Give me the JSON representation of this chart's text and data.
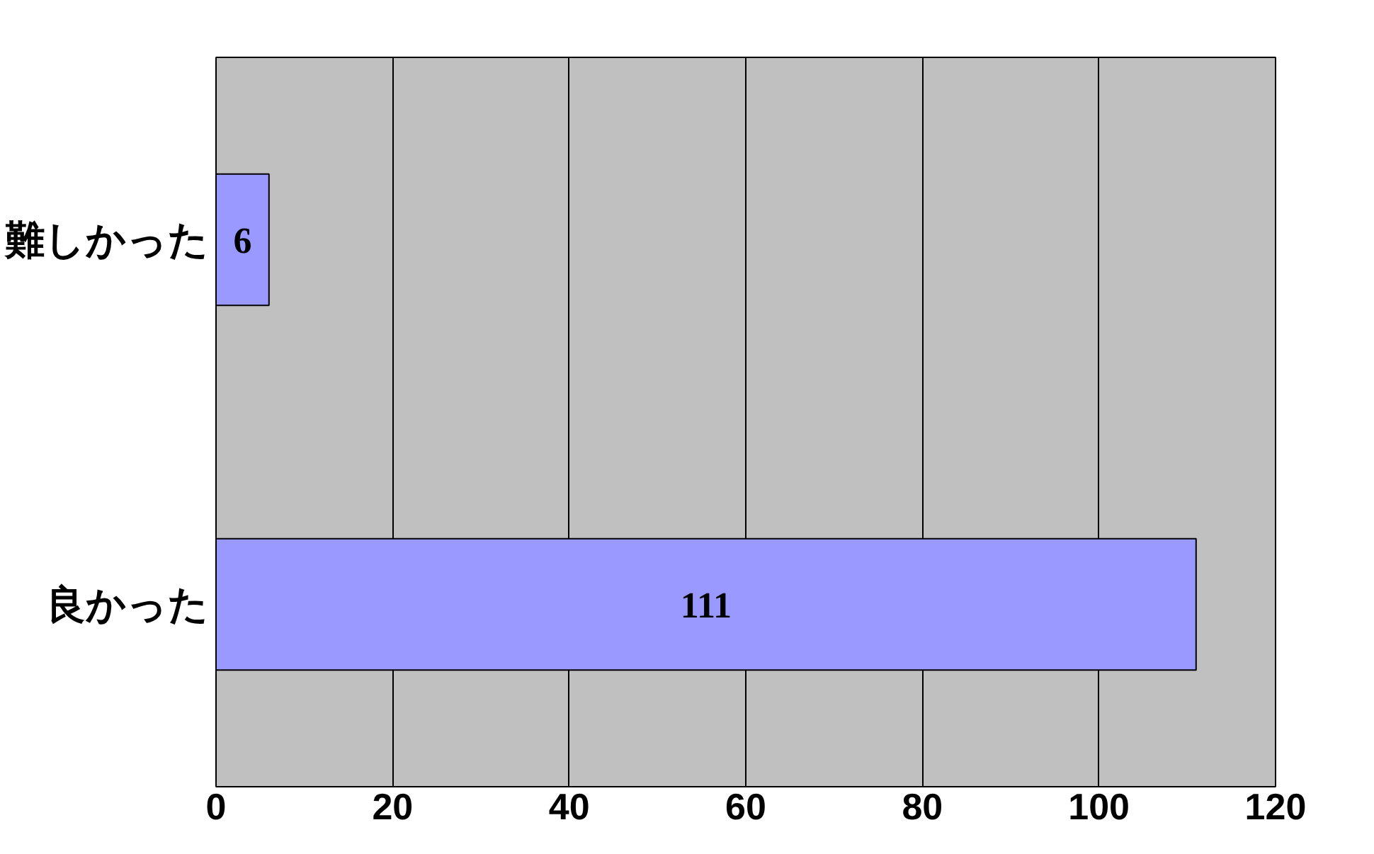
{
  "chart_data": {
    "type": "bar",
    "orientation": "horizontal",
    "categories": [
      "難しかった",
      "良かった"
    ],
    "values": [
      6,
      111
    ],
    "color": "#9999ff",
    "xlim": [
      0,
      120
    ],
    "xticks": [
      0,
      20,
      40,
      60,
      80,
      100,
      120
    ],
    "grid": "x",
    "data_labels": true
  }
}
